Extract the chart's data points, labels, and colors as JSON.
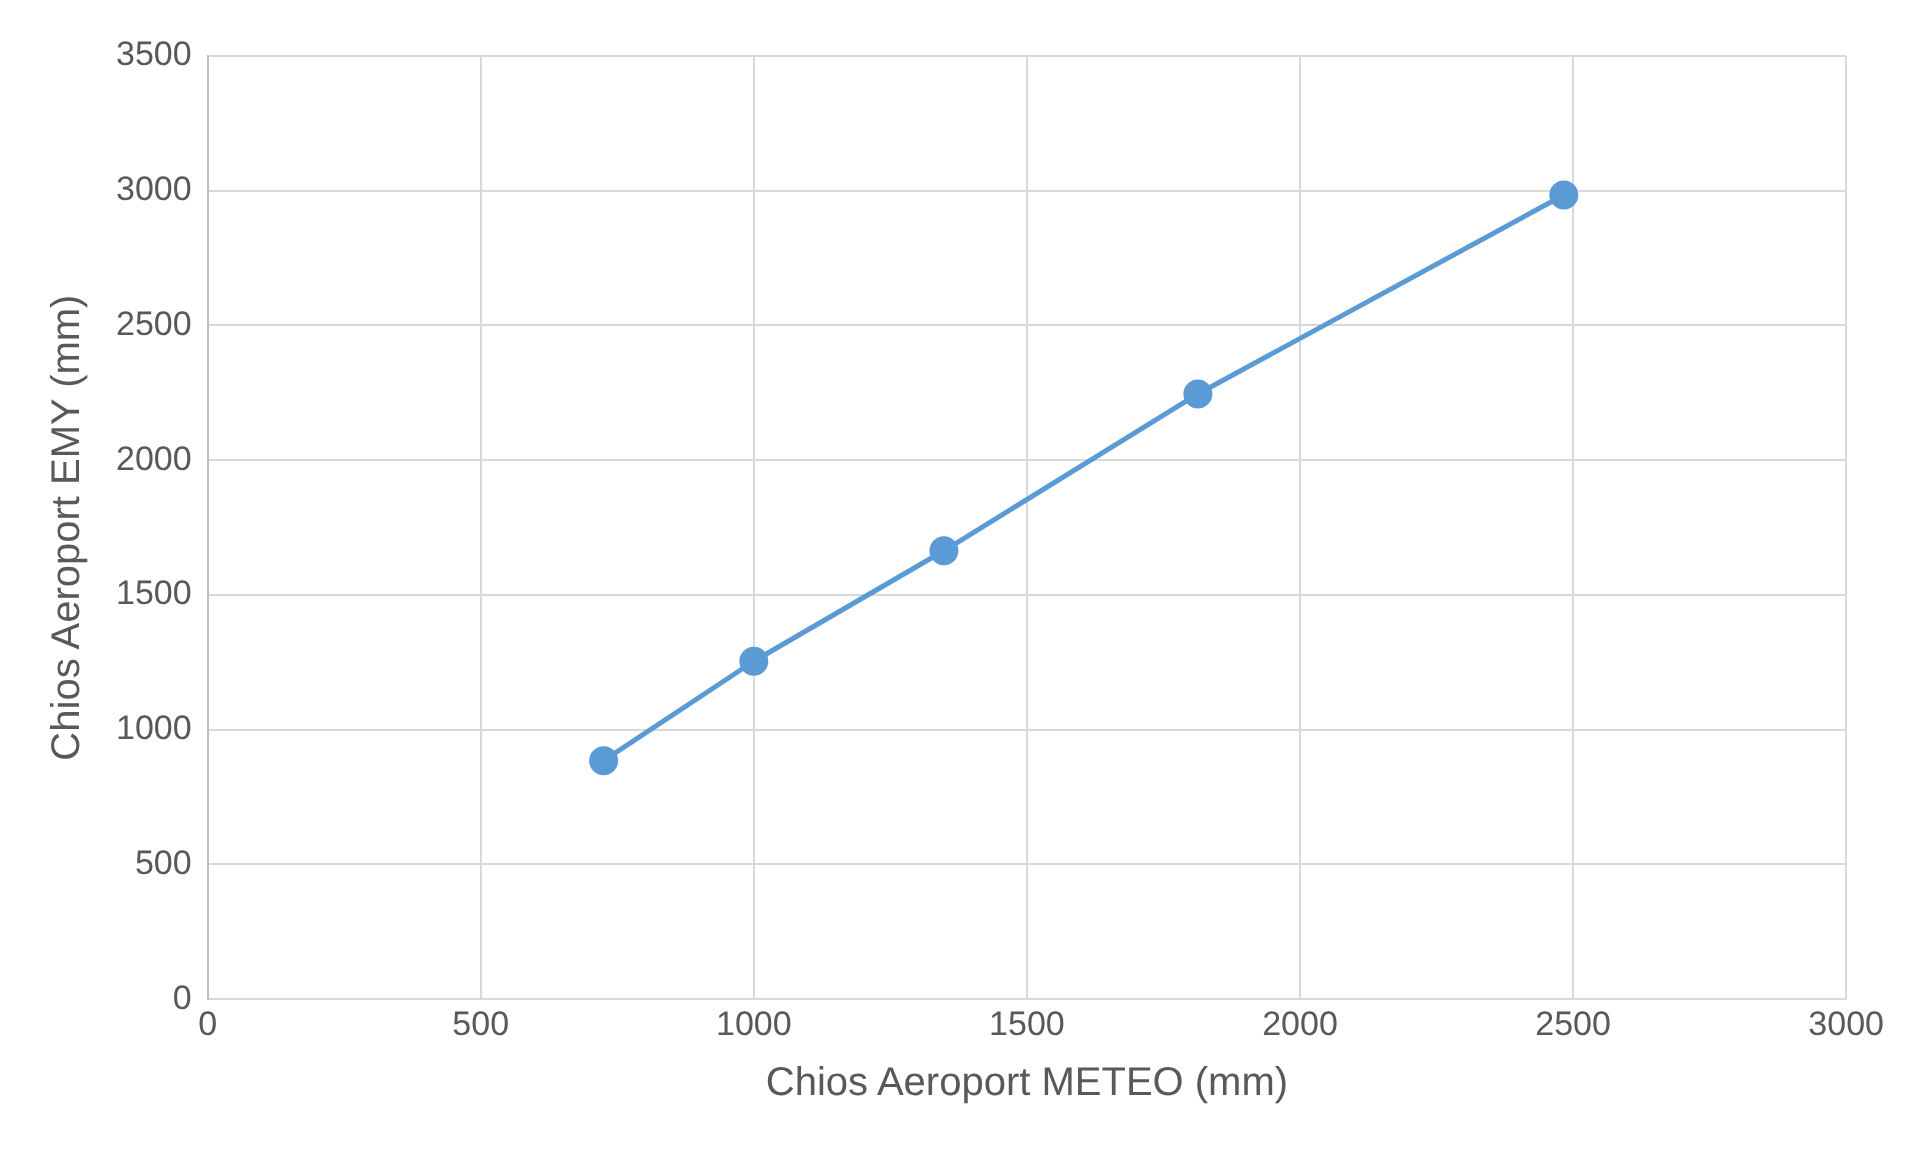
{
  "chart_data": {
    "type": "line",
    "xlabel": "Chios Aeroport METEO (mm)",
    "ylabel": "Chios Aeroport EMY (mm)",
    "x": [
      725,
      1000,
      1348,
      1813,
      2483
    ],
    "series": [
      {
        "color": "#5b9bd5",
        "values": [
          885,
          1254,
          1664,
          2246,
          2984
        ]
      }
    ],
    "xlim": [
      0,
      3000
    ],
    "xticks": [
      0,
      500,
      1000,
      1500,
      2000,
      2500,
      3000
    ],
    "ylim": [
      0,
      3500
    ],
    "yticks": [
      0,
      500,
      1000,
      1500,
      2000,
      2500,
      3000,
      3500
    ],
    "grid": true,
    "marker": "circle",
    "line_style": "solid"
  }
}
